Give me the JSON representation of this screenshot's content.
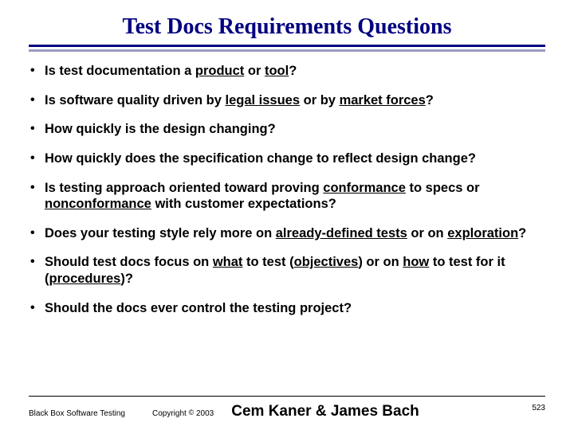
{
  "title": "Test Docs Requirements Questions",
  "bullets": [
    {
      "pre": "Is test documentation a ",
      "u1": "product",
      "mid1": " or ",
      "u2": "tool",
      "post": "?"
    },
    {
      "pre": "Is software quality driven by ",
      "u1": "legal issues",
      "mid1": " or by ",
      "u2": "market forces",
      "post": "?"
    },
    {
      "pre": "How quickly is the design changing?"
    },
    {
      "pre": "How quickly does the specification change to reflect design change?"
    },
    {
      "pre": "Is testing approach oriented toward proving ",
      "u1": "conformance",
      "mid1": " to specs or ",
      "u2": "nonconformance",
      "post": " with customer expectations?"
    },
    {
      "pre": "Does your testing style rely more on ",
      "u1": "already-defined tests",
      "mid1": " or on ",
      "u2": "exploration",
      "post": "?"
    },
    {
      "pre": "Should test docs focus on ",
      "u1": "what",
      "mid1": " to test (",
      "u2": "objectives",
      "mid2": ") or on ",
      "u3": "how",
      "mid3": " to test for it (",
      "u4": "procedures",
      "post": ")?"
    },
    {
      "pre": "Should the docs ever control the testing project?"
    }
  ],
  "footer": {
    "source": "Black Box Software Testing",
    "copyright_label": "Copyright ",
    "copyright_symbol": "©",
    "year": " 2003",
    "authors": "Cem Kaner & James Bach",
    "page": "523"
  },
  "colors": {
    "title": "#000080",
    "rule_dark": "#000080",
    "rule_light": "#9a9ac2"
  }
}
